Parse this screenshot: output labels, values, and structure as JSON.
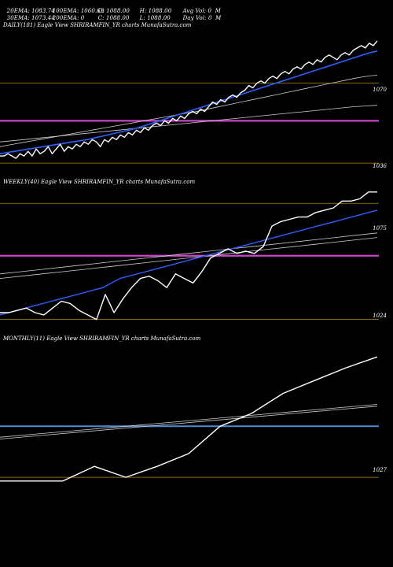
{
  "header": {
    "row1": [
      "20EMA: 1083.74",
      "100EMA: 1060.63",
      "O: 1088.00",
      "H: 1088.00",
      "Avg Vol: 0  M"
    ],
    "row2": [
      "30EMA: 1073.44",
      "200EMA: 0",
      "C: 1088.00",
      "L: 1088.00",
      "Day Vol: 0  M"
    ]
  },
  "colors": {
    "price": "#ffffff",
    "ema_fast": "#2f5fff",
    "ema_slow": "#cccccc",
    "level": "#b8860b",
    "support": "#cc44cc",
    "monthly_support": "#4a8ad8"
  },
  "panels": [
    {
      "label": "DAILY(181) Eagle  View  SHRIRAMFIN_YR charts MunafaSutra.com",
      "ticks": [
        "1070",
        "1036"
      ]
    },
    {
      "label": "WEEKLY(40) Eagle  View  SHRIRAMFIN_YR charts MunafaSutra.com",
      "ticks": [
        "1075",
        "1024"
      ]
    },
    {
      "label": "MONTHLY(11) Eagle  View  SHRIRAMFIN_YR charts MunafaSutra.com",
      "ticks": [
        "1027"
      ]
    }
  ],
  "chart_data": [
    {
      "type": "line",
      "panel": "daily",
      "ylim": [
        1030,
        1092
      ],
      "levels": [
        1070,
        1036
      ],
      "support": 1054,
      "series": [
        {
          "values": [
            1039,
            1039,
            1040,
            1039,
            1038,
            1040,
            1039,
            1041,
            1039,
            1042,
            1040,
            1041,
            1043,
            1040,
            1042,
            1044,
            1041,
            1043,
            1042,
            1044,
            1043,
            1045,
            1044,
            1046,
            1045,
            1043,
            1046,
            1045,
            1047,
            1046,
            1048,
            1047,
            1049,
            1048,
            1050,
            1049,
            1051,
            1050,
            1052,
            1053,
            1052,
            1054,
            1053,
            1055,
            1054,
            1056,
            1055,
            1057,
            1058,
            1057,
            1059,
            1058,
            1060,
            1062,
            1061,
            1063,
            1062,
            1064,
            1065,
            1064,
            1066,
            1067,
            1069,
            1068,
            1070,
            1071,
            1070,
            1072,
            1073,
            1072,
            1074,
            1075,
            1074,
            1076,
            1077,
            1076,
            1078,
            1079,
            1078,
            1080,
            1079,
            1081,
            1082,
            1081,
            1080,
            1082,
            1083,
            1082,
            1084,
            1085,
            1086,
            1085,
            1087,
            1086,
            1088
          ]
        },
        {
          "values": [
            1040,
            1040.5,
            1041,
            1041.5,
            1042,
            1042.5,
            1043,
            1043.5,
            1044,
            1044.5,
            1045,
            1045.5,
            1046,
            1046.7,
            1047.4,
            1048.1,
            1048.8,
            1049.5,
            1050.2,
            1051,
            1052,
            1053,
            1054,
            1055,
            1056,
            1057,
            1058,
            1059,
            1060,
            1061,
            1062,
            1063,
            1064,
            1065,
            1066,
            1067,
            1068,
            1069,
            1070,
            1071,
            1072,
            1073,
            1074,
            1075,
            1076,
            1077,
            1078,
            1079,
            1080,
            1081,
            1082,
            1083,
            1083.7
          ]
        },
        {
          "values": [
            1043,
            1043.6,
            1044.2,
            1044.8,
            1045.4,
            1046,
            1046.6,
            1047.2,
            1047.8,
            1048.4,
            1049,
            1049.6,
            1050.2,
            1050.8,
            1051.4,
            1052,
            1052.6,
            1053.2,
            1053.8,
            1054.4,
            1055,
            1055.6,
            1056.2,
            1056.8,
            1057.4,
            1058,
            1058.7,
            1059.4,
            1060.1,
            1060.8,
            1061.5,
            1062.2,
            1062.9,
            1063.6,
            1064.3,
            1065,
            1065.7,
            1066.4,
            1067.1,
            1067.8,
            1068.5,
            1069.2,
            1069.9,
            1070.6,
            1071.3,
            1072,
            1072.6,
            1073.1,
            1073.4
          ]
        },
        {
          "values": [
            1045,
            1045.5,
            1046,
            1046.5,
            1047,
            1047.5,
            1048,
            1048.5,
            1049,
            1049.5,
            1050,
            1050.5,
            1051,
            1051.5,
            1052,
            1052.5,
            1053,
            1053.5,
            1054,
            1054.5,
            1055,
            1055.5,
            1056,
            1056.5,
            1057,
            1057.5,
            1058,
            1058.5,
            1059,
            1059.5,
            1060,
            1060.3,
            1060.6
          ]
        }
      ]
    },
    {
      "type": "line",
      "panel": "weekly",
      "ylim": [
        1018,
        1082
      ],
      "levels": [
        1075,
        1024
      ],
      "support": 1052,
      "series": [
        {
          "values": [
            1027,
            1027,
            1028,
            1029,
            1027,
            1026,
            1029,
            1032,
            1031,
            1028,
            1026,
            1024,
            1035,
            1027,
            1033,
            1038,
            1042,
            1043,
            1041,
            1038,
            1044,
            1042,
            1040,
            1045,
            1051,
            1053,
            1055,
            1053,
            1054,
            1053,
            1056,
            1065,
            1067,
            1068,
            1069,
            1069,
            1071,
            1072,
            1073,
            1076,
            1076,
            1077,
            1080,
            1080
          ]
        },
        {
          "values": [
            1026,
            1027,
            1028,
            1029,
            1030,
            1031,
            1032,
            1033,
            1034,
            1035,
            1036,
            1037,
            1038,
            1040,
            1042,
            1043,
            1044,
            1045,
            1046,
            1047,
            1048,
            1049,
            1050,
            1051,
            1052,
            1053,
            1054,
            1055,
            1056,
            1057,
            1058,
            1059,
            1060,
            1061,
            1062,
            1063,
            1064,
            1065,
            1066,
            1067,
            1068,
            1069,
            1070,
            1071,
            1072
          ]
        },
        {
          "values": [
            1042,
            1043,
            1044,
            1045,
            1046,
            1047,
            1048,
            1049,
            1050,
            1051,
            1052,
            1053,
            1054,
            1055,
            1056,
            1057,
            1058,
            1059,
            1060
          ]
        },
        {
          "values": [
            1044,
            1045,
            1046,
            1047,
            1048,
            1049,
            1050,
            1051,
            1052,
            1053,
            1054,
            1055,
            1056,
            1057,
            1058,
            1059,
            1060,
            1061,
            1062
          ]
        }
      ]
    },
    {
      "type": "line",
      "panel": "monthly",
      "ylim": [
        1018,
        1100
      ],
      "levels": [
        1027
      ],
      "support": 1055,
      "series": [
        {
          "values": [
            1025,
            1025,
            1025,
            1033,
            1027,
            1033,
            1040,
            1055,
            1062,
            1073,
            1080,
            1087,
            1093
          ]
        },
        {
          "values": [
            1048,
            1050,
            1052,
            1054,
            1056,
            1058,
            1060,
            1062,
            1064,
            1066
          ]
        },
        {
          "values": [
            1049,
            1051,
            1053,
            1055,
            1057,
            1059,
            1061,
            1063,
            1065,
            1067
          ]
        }
      ]
    }
  ]
}
